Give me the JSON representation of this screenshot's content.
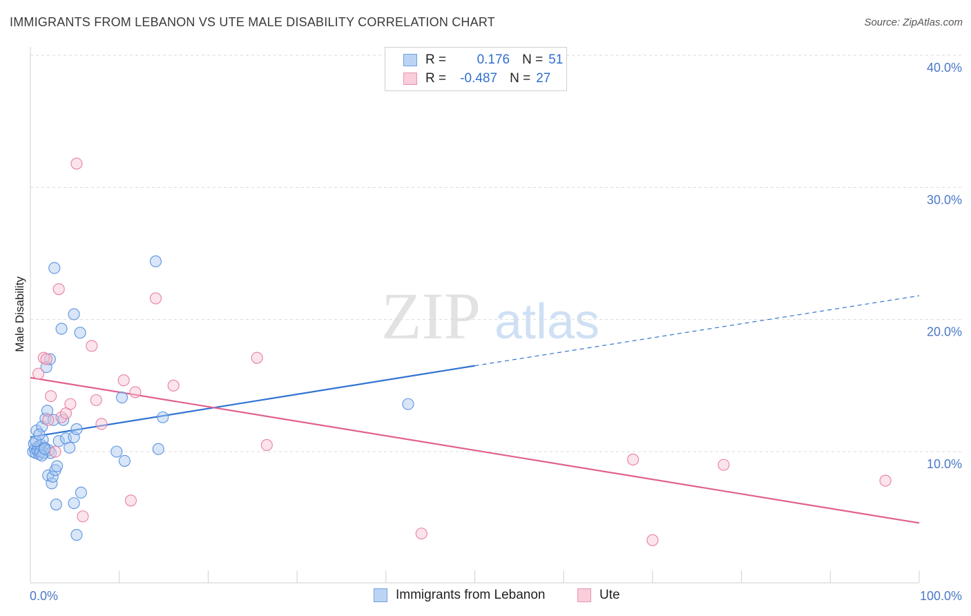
{
  "header": {
    "title": "IMMIGRANTS FROM LEBANON VS UTE MALE DISABILITY CORRELATION CHART",
    "source": "Source: ZipAtlas.com"
  },
  "watermark": {
    "zip": "ZIP",
    "atlas": "atlas"
  },
  "legend": {
    "rows": [
      {
        "r_label": "R =",
        "r_value": "0.176",
        "n_label": "N =",
        "n_value": "51",
        "color": "#8bb3e8"
      },
      {
        "r_label": "R =",
        "r_value": "-0.487",
        "n_label": "N =",
        "n_value": "27",
        "color": "#f1a5bd"
      }
    ]
  },
  "bottom_legend": {
    "items": [
      {
        "label": "Immigrants from Lebanon",
        "color": "#8bb3e8"
      },
      {
        "label": "Ute",
        "color": "#f1a5bd"
      }
    ]
  },
  "chart_data": {
    "type": "scatter",
    "title": "IMMIGRANTS FROM LEBANON VS UTE MALE DISABILITY CORRELATION CHART",
    "xlabel": "",
    "ylabel": "Male Disability",
    "xlim": [
      0,
      100
    ],
    "ylim": [
      0,
      42
    ],
    "x_tick_labels": [
      {
        "value": 0,
        "label": "0.0%"
      },
      {
        "value": 100,
        "label": "100.0%"
      }
    ],
    "x_minor_ticks": [
      10,
      20,
      30,
      40,
      50,
      60,
      70,
      80,
      90,
      100
    ],
    "y_tick_labels": [
      {
        "value": 10,
        "label": "10.0%"
      },
      {
        "value": 20,
        "label": "20.0%"
      },
      {
        "value": 30,
        "label": "30.0%"
      },
      {
        "value": 40,
        "label": "40.0%"
      }
    ],
    "grid": "horizontal dashed",
    "legend_position": "top-center",
    "series": [
      {
        "name": "Immigrants from Lebanon",
        "color": "#5b93e0",
        "fill": "#a8c8f0",
        "trend": {
          "x": [
            0,
            50
          ],
          "y": [
            11.1,
            16.5
          ],
          "dashed_extension": {
            "x": [
              50,
              100
            ],
            "y": [
              16.5,
              21.8
            ]
          },
          "color": "#2f73d2"
        },
        "points": [
          [
            0.3,
            10.0
          ],
          [
            0.5,
            10.2
          ],
          [
            0.4,
            10.6
          ],
          [
            0.6,
            9.9
          ],
          [
            0.8,
            10.1
          ],
          [
            0.7,
            11.6
          ],
          [
            0.9,
            10.4
          ],
          [
            1.0,
            9.8
          ],
          [
            1.1,
            10.0
          ],
          [
            1.2,
            10.5
          ],
          [
            1.3,
            11.9
          ],
          [
            1.4,
            10.9
          ],
          [
            1.5,
            9.9
          ],
          [
            1.6,
            10.3
          ],
          [
            1.7,
            12.5
          ],
          [
            1.8,
            16.4
          ],
          [
            1.9,
            13.1
          ],
          [
            2.0,
            8.2
          ],
          [
            2.1,
            10.1
          ],
          [
            2.2,
            17.0
          ],
          [
            2.3,
            9.9
          ],
          [
            2.4,
            7.6
          ],
          [
            2.5,
            8.1
          ],
          [
            2.6,
            12.4
          ],
          [
            2.7,
            23.9
          ],
          [
            2.8,
            8.6
          ],
          [
            2.9,
            6.0
          ],
          [
            3.0,
            8.9
          ],
          [
            3.2,
            10.8
          ],
          [
            3.5,
            19.3
          ],
          [
            3.7,
            12.4
          ],
          [
            4.0,
            11.0
          ],
          [
            4.4,
            10.3
          ],
          [
            4.9,
            11.1
          ],
          [
            4.9,
            20.4
          ],
          [
            5.2,
            11.7
          ],
          [
            4.9,
            6.1
          ],
          [
            5.6,
            19.0
          ],
          [
            5.2,
            3.7
          ],
          [
            5.7,
            6.9
          ],
          [
            9.7,
            10.0
          ],
          [
            10.3,
            14.1
          ],
          [
            10.6,
            9.3
          ],
          [
            14.1,
            24.4
          ],
          [
            14.4,
            10.2
          ],
          [
            14.9,
            12.6
          ],
          [
            42.5,
            13.6
          ],
          [
            0.6,
            10.8
          ],
          [
            1.0,
            11.3
          ],
          [
            1.3,
            9.7
          ],
          [
            1.6,
            10.2
          ]
        ]
      },
      {
        "name": "Ute",
        "color": "#e87fa0",
        "fill": "#f7c3d3",
        "trend": {
          "x": [
            0,
            100
          ],
          "y": [
            15.6,
            4.6
          ],
          "color": "#e0608f"
        },
        "points": [
          [
            0.9,
            15.9
          ],
          [
            1.5,
            17.1
          ],
          [
            1.8,
            17.0
          ],
          [
            2.0,
            12.4
          ],
          [
            2.3,
            14.2
          ],
          [
            2.8,
            10.0
          ],
          [
            3.2,
            22.3
          ],
          [
            3.5,
            12.6
          ],
          [
            4.0,
            12.9
          ],
          [
            4.5,
            13.6
          ],
          [
            5.2,
            31.8
          ],
          [
            5.9,
            5.1
          ],
          [
            6.9,
            18.0
          ],
          [
            7.4,
            13.9
          ],
          [
            8.0,
            12.1
          ],
          [
            10.5,
            15.4
          ],
          [
            11.3,
            6.3
          ],
          [
            11.8,
            14.5
          ],
          [
            14.1,
            21.6
          ],
          [
            16.1,
            15.0
          ],
          [
            25.5,
            17.1
          ],
          [
            26.6,
            10.5
          ],
          [
            44.0,
            3.8
          ],
          [
            67.8,
            9.4
          ],
          [
            70.0,
            3.3
          ],
          [
            78.0,
            9.0
          ],
          [
            96.2,
            7.8
          ]
        ]
      }
    ]
  }
}
